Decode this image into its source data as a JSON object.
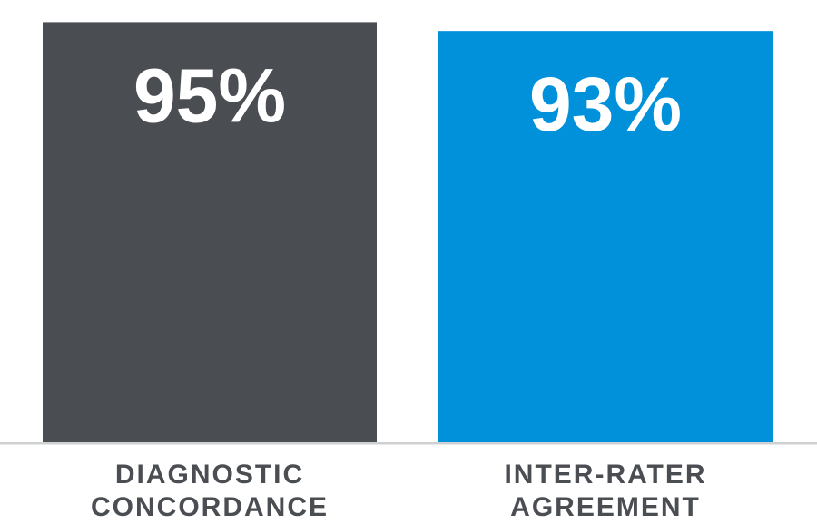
{
  "chart_data": {
    "type": "bar",
    "categories": [
      "DIAGNOSTIC CONCORDANCE",
      "INTER-RATER AGREEMENT"
    ],
    "values": [
      95,
      93
    ],
    "value_labels": [
      "95%",
      "93%"
    ],
    "colors": [
      "#4a4d52",
      "#0091da"
    ],
    "ylim": [
      0,
      100
    ]
  }
}
